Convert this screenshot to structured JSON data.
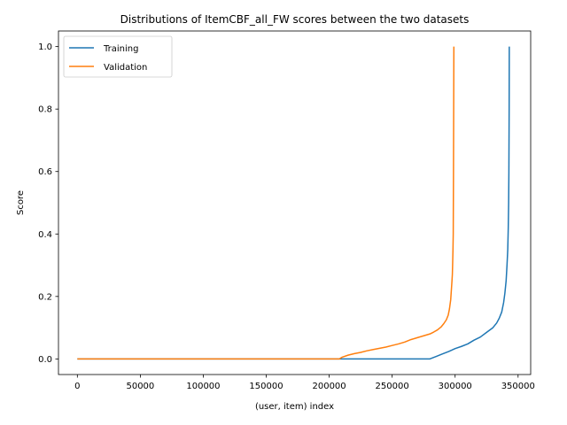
{
  "chart_data": {
    "type": "line",
    "title": "Distributions of ItemCBF_all_FW scores between the two datasets",
    "xlabel": "(user, item) index",
    "ylabel": "Score",
    "xlim": [
      -15000,
      360000
    ],
    "ylim": [
      -0.05,
      1.05
    ],
    "xticks": [
      0,
      50000,
      100000,
      150000,
      200000,
      250000,
      300000,
      350000
    ],
    "xtick_labels": [
      "0",
      "50000",
      "100000",
      "150000",
      "200000",
      "250000",
      "300000",
      "350000"
    ],
    "yticks": [
      0.0,
      0.2,
      0.4,
      0.6,
      0.8,
      1.0
    ],
    "ytick_labels": [
      "0.0",
      "0.2",
      "0.4",
      "0.6",
      "0.8",
      "1.0"
    ],
    "grid": false,
    "legend": "top-left",
    "series": [
      {
        "name": "Training",
        "color": "#1f77b4",
        "x": [
          0,
          280000,
          285000,
          290000,
          295000,
          300000,
          305000,
          310000,
          315000,
          320000,
          325000,
          330000,
          333000,
          335000,
          337000,
          338500,
          339500,
          340500,
          341200,
          341800,
          342200,
          342500,
          342700,
          342900,
          343000
        ],
        "y": [
          0.0,
          0.0,
          0.008,
          0.016,
          0.024,
          0.033,
          0.04,
          0.048,
          0.06,
          0.07,
          0.085,
          0.1,
          0.115,
          0.13,
          0.15,
          0.18,
          0.21,
          0.25,
          0.3,
          0.35,
          0.42,
          0.5,
          0.6,
          0.8,
          1.0
        ]
      },
      {
        "name": "Validation",
        "color": "#ff7f0e",
        "x": [
          0,
          208000,
          210000,
          215000,
          220000,
          225000,
          230000,
          235000,
          240000,
          245000,
          250000,
          255000,
          260000,
          265000,
          270000,
          275000,
          280000,
          283000,
          286000,
          289000,
          291000,
          293000,
          294500,
          295500,
          296500,
          297000,
          297500,
          297800,
          298000,
          298300,
          298500,
          298700,
          298850,
          299000
        ],
        "y": [
          0.0,
          0.0,
          0.005,
          0.012,
          0.017,
          0.021,
          0.026,
          0.03,
          0.034,
          0.038,
          0.043,
          0.048,
          0.054,
          0.062,
          0.068,
          0.074,
          0.08,
          0.086,
          0.093,
          0.103,
          0.113,
          0.125,
          0.14,
          0.16,
          0.19,
          0.22,
          0.25,
          0.27,
          0.3,
          0.35,
          0.4,
          0.6,
          0.8,
          1.0
        ]
      }
    ]
  }
}
